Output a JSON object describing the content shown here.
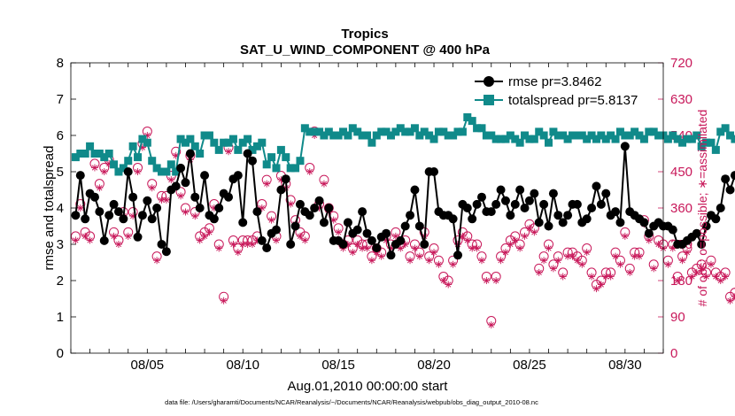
{
  "colors": {
    "rmse": "#000000",
    "spread": "#108a8a",
    "obs": "#c8185a",
    "axis": "#000000"
  },
  "chart_data": {
    "type": "line",
    "title": "Tropics",
    "subtitle": "SAT_U_WIND_COMPONENT @ 400 hPa",
    "xlabel": "Aug.01,2010 00:00:00 start",
    "ylabel": "rmse and totalspread",
    "y2label": "# of obs: o=possible; ∗=assimilated",
    "xlim": [
      1,
      32
    ],
    "ylim": [
      0,
      8
    ],
    "y2lim": [
      0,
      720
    ],
    "x_ticks": [
      5,
      10,
      15,
      20,
      25,
      30
    ],
    "x_tick_labels": [
      "08/05",
      "08/10",
      "08/15",
      "08/20",
      "08/25",
      "08/30"
    ],
    "y_ticks": [
      0,
      1,
      2,
      3,
      4,
      5,
      6,
      7,
      8
    ],
    "y_tick_labels": [
      "0",
      "1",
      "2",
      "3",
      "4",
      "5",
      "6",
      "7",
      "8"
    ],
    "y2_ticks": [
      0,
      90,
      180,
      270,
      360,
      450,
      540,
      630,
      720
    ],
    "y2_tick_labels": [
      "0",
      "90",
      "180",
      "270",
      "360",
      "450",
      "540",
      "630",
      "720"
    ],
    "legend_position": "top-right",
    "footer": "data file: /Users/gharamti/Documents/NCAR/Reanalysis/~/Documents/NCAR/Reanalysis/webpub/obs_diag_output_2010-08.nc",
    "x_start": 1.25,
    "x_step": 0.25,
    "series": [
      {
        "name": "rmse",
        "label": "rmse pr=3.8462",
        "values": [
          3.8,
          4.9,
          3.7,
          4.4,
          4.3,
          3.9,
          3.1,
          3.8,
          4.1,
          3.9,
          3.7,
          5.0,
          4.3,
          3.2,
          3.8,
          4.2,
          3.7,
          4.0,
          3.0,
          2.8,
          4.5,
          4.6,
          5.1,
          4.7,
          5.5,
          4.3,
          4.0,
          4.9,
          3.8,
          3.7,
          4.0,
          4.4,
          4.3,
          4.8,
          4.9,
          3.6,
          5.5,
          5.3,
          3.9,
          3.1,
          2.9,
          3.3,
          3.4,
          4.5,
          4.8,
          3.0,
          3.5,
          4.1,
          3.9,
          3.8,
          4.0,
          4.2,
          3.6,
          4.0,
          3.1,
          3.1,
          3.0,
          3.6,
          3.3,
          3.4,
          3.9,
          3.3,
          3.1,
          2.9,
          3.2,
          3.3,
          2.7,
          3.0,
          3.1,
          3.5,
          3.8,
          4.5,
          3.5,
          3.0,
          5.0,
          5.0,
          3.9,
          3.8,
          3.8,
          3.7,
          2.7,
          4.1,
          4.0,
          3.7,
          4.1,
          4.3,
          3.9,
          3.9,
          4.1,
          4.5,
          4.2,
          3.8,
          4.1,
          4.5,
          4.0,
          4.2,
          4.4,
          3.6,
          4.1,
          3.5,
          4.4,
          3.8,
          3.6,
          3.8,
          4.1,
          4.1,
          3.6,
          3.7,
          4.0,
          4.6,
          4.1,
          4.4,
          3.8,
          3.9,
          3.6,
          5.7,
          3.9,
          3.8,
          3.7,
          3.6,
          3.3,
          3.5,
          3.6,
          3.5,
          3.5,
          3.4,
          3.0,
          3.0,
          3.1,
          3.2,
          3.3,
          3.0,
          3.5,
          3.8,
          3.7,
          4.0,
          4.8,
          4.5,
          4.9,
          5.0
        ]
      },
      {
        "name": "totalspread",
        "label": "totalspread pr=5.8137",
        "values": [
          5.4,
          5.5,
          5.5,
          5.7,
          5.5,
          5.5,
          5.4,
          5.5,
          5.2,
          5.0,
          5.1,
          5.3,
          5.7,
          5.4,
          5.9,
          5.8,
          5.3,
          5.1,
          5.0,
          5.0,
          5.2,
          5.0,
          5.9,
          5.8,
          5.9,
          5.7,
          5.5,
          6.0,
          6.0,
          5.8,
          5.6,
          5.8,
          5.8,
          5.9,
          5.6,
          5.8,
          5.9,
          5.6,
          5.7,
          5.8,
          5.2,
          5.4,
          5.1,
          5.6,
          5.4,
          5.1,
          5.1,
          5.3,
          6.2,
          6.1,
          6.1,
          6.1,
          6.0,
          6.1,
          6.0,
          6.0,
          6.1,
          6.0,
          6.2,
          6.1,
          6.0,
          6.0,
          5.8,
          6.0,
          6.1,
          6.1,
          6.0,
          6.1,
          6.2,
          6.1,
          6.1,
          6.2,
          6.0,
          6.1,
          6.0,
          5.9,
          6.1,
          6.1,
          6.0,
          6.0,
          6.1,
          6.1,
          6.5,
          6.4,
          6.2,
          6.2,
          6.0,
          6.0,
          5.9,
          5.9,
          5.9,
          6.0,
          5.9,
          5.8,
          6.0,
          5.9,
          5.9,
          6.1,
          6.0,
          5.8,
          6.1,
          6.0,
          6.0,
          5.9,
          6.0,
          6.0,
          6.0,
          5.9,
          6.0,
          5.9,
          6.0,
          5.9,
          6.0,
          5.9,
          6.1,
          6.0,
          6.0,
          6.1,
          6.0,
          5.9,
          6.1,
          6.1,
          6.0,
          6.0,
          5.9,
          6.0,
          5.9,
          5.8,
          5.9,
          5.9,
          6.0,
          5.7,
          5.8,
          5.8,
          5.6,
          6.1,
          6.2,
          6.0,
          5.9,
          5.9,
          5.9,
          5.8,
          5.7,
          5.7
        ]
      },
      {
        "name": "obs_possible",
        "label": "# of obs possible",
        "values": [
          290,
          370,
          300,
          290,
          470,
          420,
          460,
          480,
          300,
          280,
          350,
          300,
          350,
          460,
          520,
          550,
          420,
          240,
          390,
          390,
          440,
          500,
          400,
          360,
          490,
          350,
          290,
          300,
          310,
          370,
          270,
          140,
          510,
          280,
          260,
          280,
          280,
          280,
          290,
          370,
          430,
          340,
          290,
          440,
          420,
          380,
          330,
          300,
          290,
          460,
          550,
          370,
          430,
          360,
          340,
          310,
          270,
          280,
          260,
          280,
          270,
          270,
          240,
          260,
          250,
          290,
          270,
          300,
          270,
          280,
          240,
          270,
          250,
          300,
          240,
          260,
          230,
          190,
          180,
          230,
          280,
          300,
          290,
          270,
          270,
          240,
          190,
          80,
          190,
          240,
          260,
          280,
          290,
          270,
          300,
          320,
          310,
          210,
          240,
          270,
          220,
          240,
          200,
          250,
          250,
          240,
          230,
          260,
          200,
          170,
          180,
          200,
          200,
          250,
          230,
          300,
          210,
          250,
          250,
          330,
          290,
          220,
          280,
          270,
          230,
          270,
          190,
          240,
          260,
          200,
          210,
          220,
          200,
          230,
          200,
          190,
          200,
          140,
          150,
          160,
          200,
          130,
          130,
          190
        ]
      },
      {
        "name": "obs_assimilated",
        "label": "# of obs assimilated",
        "values": [
          280,
          360,
          290,
          280,
          460,
          410,
          450,
          470,
          290,
          270,
          340,
          290,
          340,
          450,
          510,
          540,
          410,
          230,
          380,
          380,
          430,
          490,
          390,
          350,
          480,
          340,
          280,
          290,
          300,
          360,
          260,
          130,
          500,
          270,
          250,
          270,
          270,
          270,
          280,
          360,
          420,
          330,
          280,
          430,
          410,
          370,
          320,
          290,
          280,
          450,
          540,
          360,
          420,
          350,
          330,
          300,
          260,
          270,
          250,
          270,
          260,
          260,
          230,
          250,
          240,
          280,
          260,
          290,
          260,
          270,
          230,
          260,
          240,
          290,
          230,
          250,
          220,
          180,
          170,
          220,
          270,
          290,
          280,
          260,
          260,
          230,
          180,
          70,
          180,
          230,
          250,
          270,
          280,
          260,
          290,
          310,
          300,
          200,
          230,
          260,
          210,
          230,
          190,
          240,
          240,
          230,
          220,
          250,
          190,
          160,
          170,
          190,
          190,
          240,
          220,
          290,
          200,
          240,
          240,
          320,
          280,
          210,
          270,
          260,
          220,
          260,
          180,
          230,
          250,
          190,
          200,
          210,
          190,
          220,
          190,
          180,
          190,
          130,
          140,
          150,
          190,
          120,
          120,
          180
        ]
      }
    ]
  }
}
